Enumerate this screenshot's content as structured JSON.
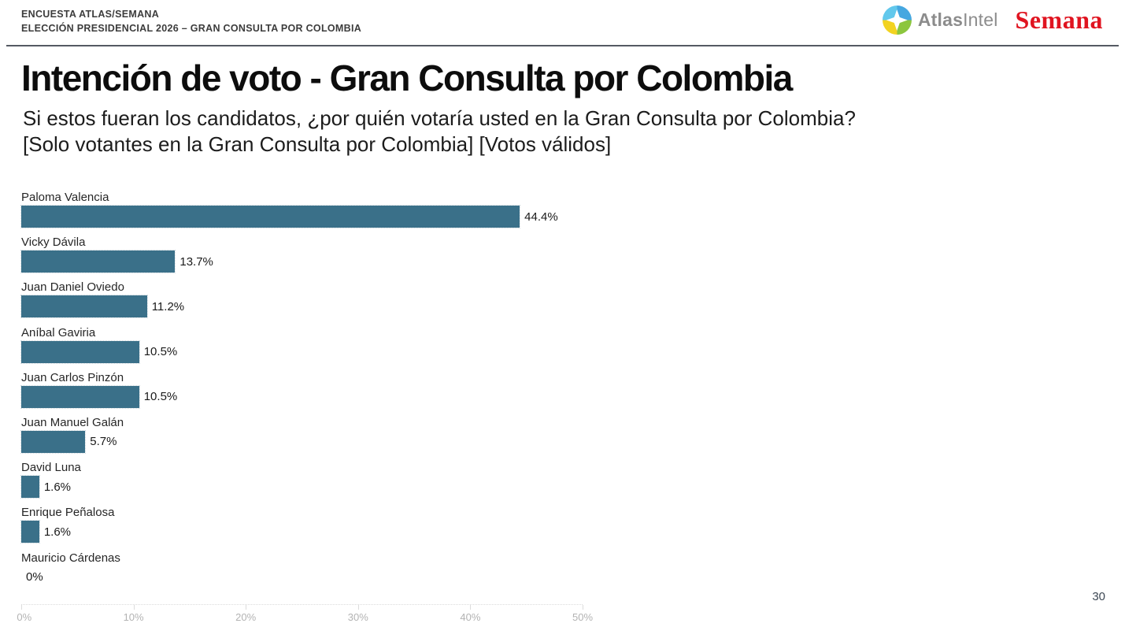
{
  "header": {
    "line1": "ENCUESTA ATLAS/SEMANA",
    "line2": "ELECCIÓN PRESIDENCIAL 2026 – GRAN CONSULTA POR COLOMBIA",
    "atlas_logo": {
      "bold_part": "Atlas",
      "regular_part": "Intel"
    },
    "semana_logo": "Semana"
  },
  "main": {
    "title": "Intención de voto - Gran Consulta por Colombia",
    "subtitle_line1": "Si estos fueran los candidatos, ¿por quién votaría usted en la Gran Consulta por Colombia?",
    "subtitle_line2": "[Solo votantes en la Gran Consulta por Colombia] [Votos válidos]"
  },
  "footer": {
    "page_number": "30"
  },
  "colors": {
    "bar": "#3A7089",
    "semana_red": "#E01420",
    "atlas_gray": "#8C8C8C",
    "axis_label": "#B3B3B3"
  },
  "chart_data": {
    "type": "bar",
    "orientation": "horizontal",
    "title": "Intención de voto - Gran Consulta por Colombia",
    "xlabel": "",
    "ylabel": "",
    "xlim": [
      0,
      50
    ],
    "x_ticks": [
      0,
      10,
      20,
      30,
      40,
      50
    ],
    "x_tick_labels": [
      "0%",
      "10%",
      "20%",
      "30%",
      "40%",
      "50%"
    ],
    "grid": false,
    "legend": false,
    "categories": [
      "Paloma Valencia",
      "Vicky Dávila",
      "Juan Daniel Oviedo",
      "Aníbal Gaviria",
      "Juan Carlos Pinzón",
      "Juan Manuel Galán",
      "David Luna",
      "Enrique Peñalosa",
      "Mauricio Cárdenas"
    ],
    "values": [
      44.4,
      13.7,
      11.2,
      10.5,
      10.5,
      5.7,
      1.6,
      1.6,
      0
    ],
    "value_labels": [
      "44.4%",
      "13.7%",
      "11.2%",
      "10.5%",
      "10.5%",
      "5.7%",
      "1.6%",
      "1.6%",
      "0%"
    ],
    "bar_color": "#3A7089"
  }
}
